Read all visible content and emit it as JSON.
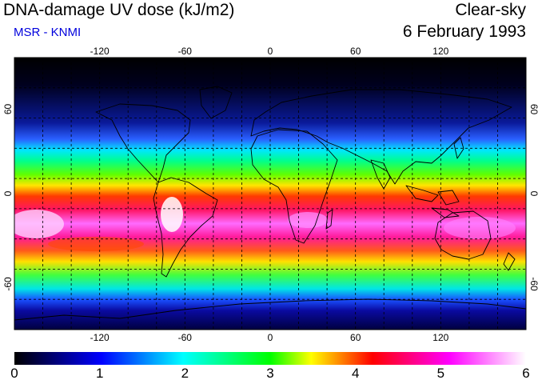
{
  "header": {
    "title": "DNA-damage UV dose (kJ/m2)",
    "subtitle": "MSR - KNMI",
    "condition": "Clear-sky",
    "date": "6 February 1993"
  },
  "colors": {
    "subtitle": "#0000dd"
  },
  "map": {
    "lon_ticks": [
      "-120",
      "-60",
      "0",
      "60",
      "120"
    ],
    "lat_ticks": [
      "60",
      "0",
      "-60"
    ],
    "grid": "dashed every 20 degrees",
    "projection": "equirectangular",
    "lon_range": [
      -180,
      180
    ],
    "lat_range": [
      -90,
      90
    ]
  },
  "colorbar": {
    "labels": [
      "0",
      "1",
      "2",
      "3",
      "4",
      "5",
      "6"
    ],
    "stops": [
      "#000000",
      "#0000ff",
      "#00ffff",
      "#00ff00",
      "#ffff00",
      "#ff0000",
      "#ff00ff",
      "#ffffff"
    ]
  }
}
